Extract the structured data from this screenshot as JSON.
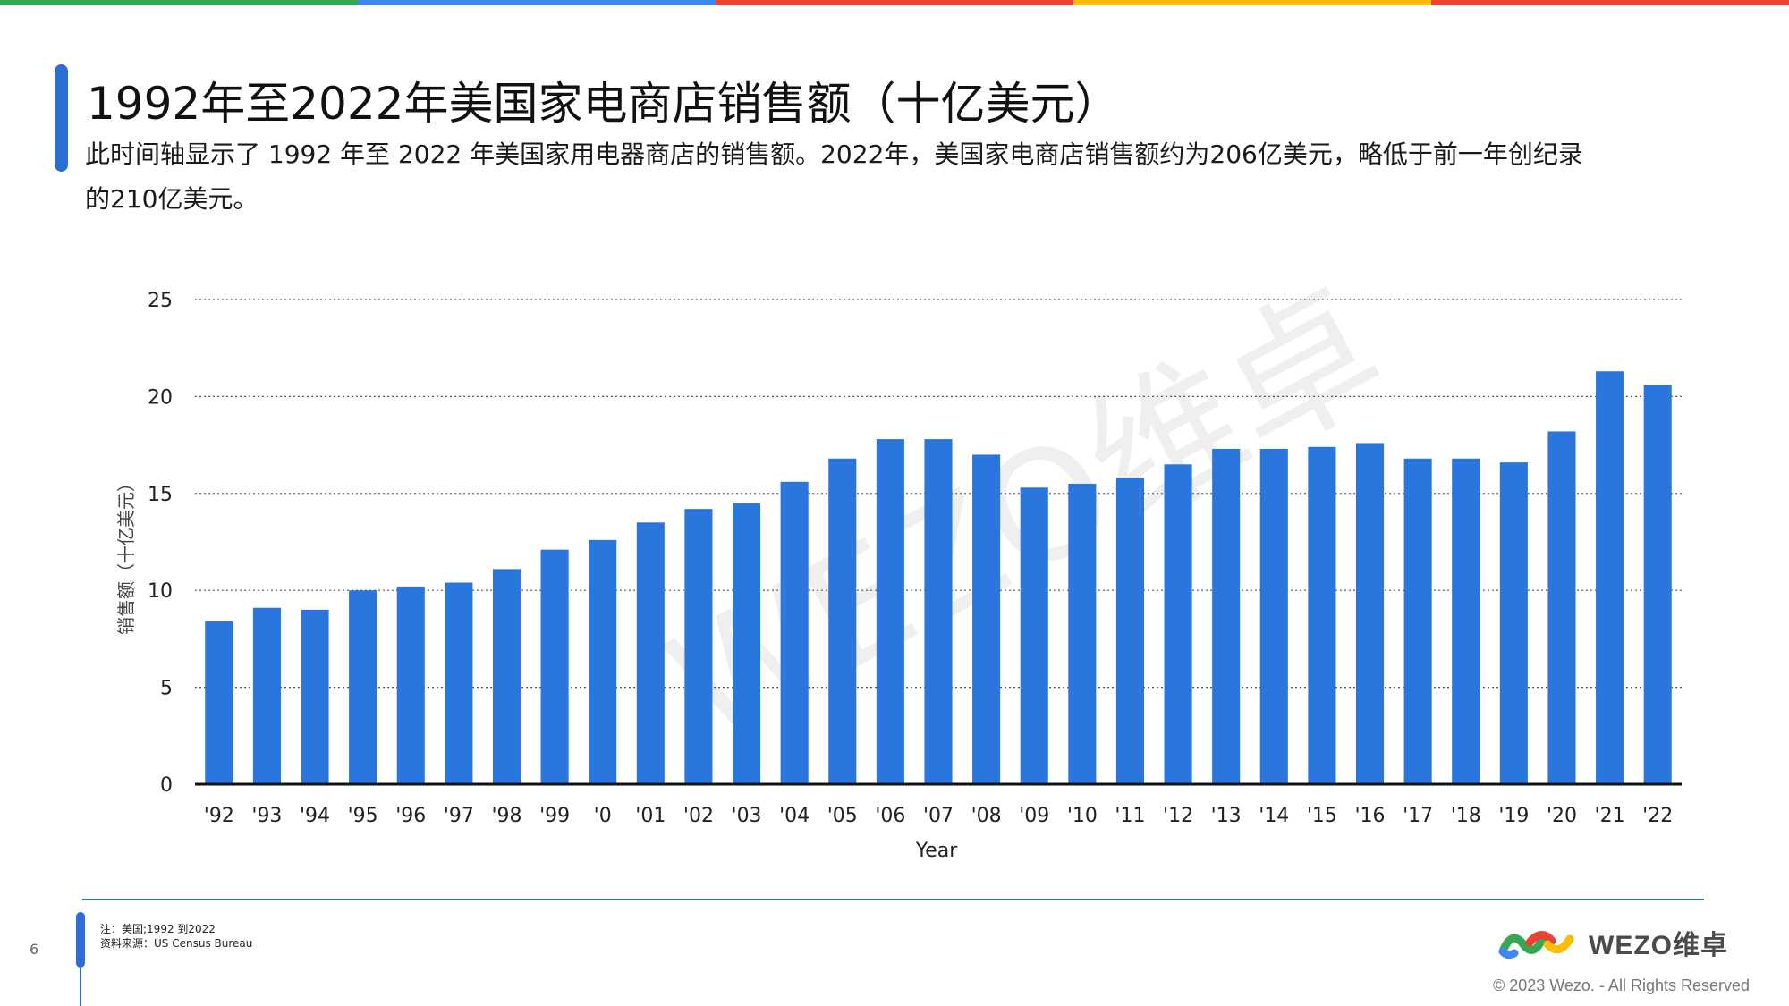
{
  "topbar_colors": [
    "#34a853",
    "#4285f4",
    "#ea4335",
    "#fbbc05",
    "#ea4335"
  ],
  "title": "1992年至2022年美国家电商店销售额（十亿美元）",
  "subtitle": "此时间轴显示了 1992 年至 2022 年美国家用电器商店的销售额。2022年，美国家电商店销售额约为206亿美元，略低于前一年创纪录的210亿美元。",
  "chart_data": {
    "type": "bar",
    "categories": [
      "'92",
      "'93",
      "'94",
      "'95",
      "'96",
      "'97",
      "'98",
      "'99",
      "'0",
      "'01",
      "'02",
      "'03",
      "'04",
      "'05",
      "'06",
      "'07",
      "'08",
      "'09",
      "'10",
      "'11",
      "'12",
      "'13",
      "'14",
      "'15",
      "'16",
      "'17",
      "'18",
      "'19",
      "'20",
      "'21",
      "'22"
    ],
    "values": [
      8.4,
      9.1,
      9.0,
      10.0,
      10.2,
      10.4,
      11.1,
      12.1,
      12.6,
      13.5,
      14.2,
      14.5,
      15.6,
      16.8,
      17.8,
      17.8,
      17.0,
      15.3,
      15.5,
      15.8,
      16.5,
      17.3,
      17.3,
      17.4,
      17.6,
      16.8,
      16.8,
      16.6,
      18.2,
      21.3,
      20.6
    ],
    "xlabel": "Year",
    "ylabel": "销售额（十亿美元）",
    "ylim": [
      0,
      25
    ],
    "yticks": [
      0,
      5,
      10,
      15,
      20,
      25
    ],
    "bar_color": "#2a76dc",
    "grid": true,
    "grid_style": "dotted"
  },
  "watermark": "WEZO维卓",
  "footer": {
    "page_number": "6",
    "note": "注：美国;1992 到2022",
    "source": "资料来源：US Census Bureau",
    "brand": "WEZO维卓",
    "copyright": "© 2023 Wezo. - All Rights Reserved"
  }
}
